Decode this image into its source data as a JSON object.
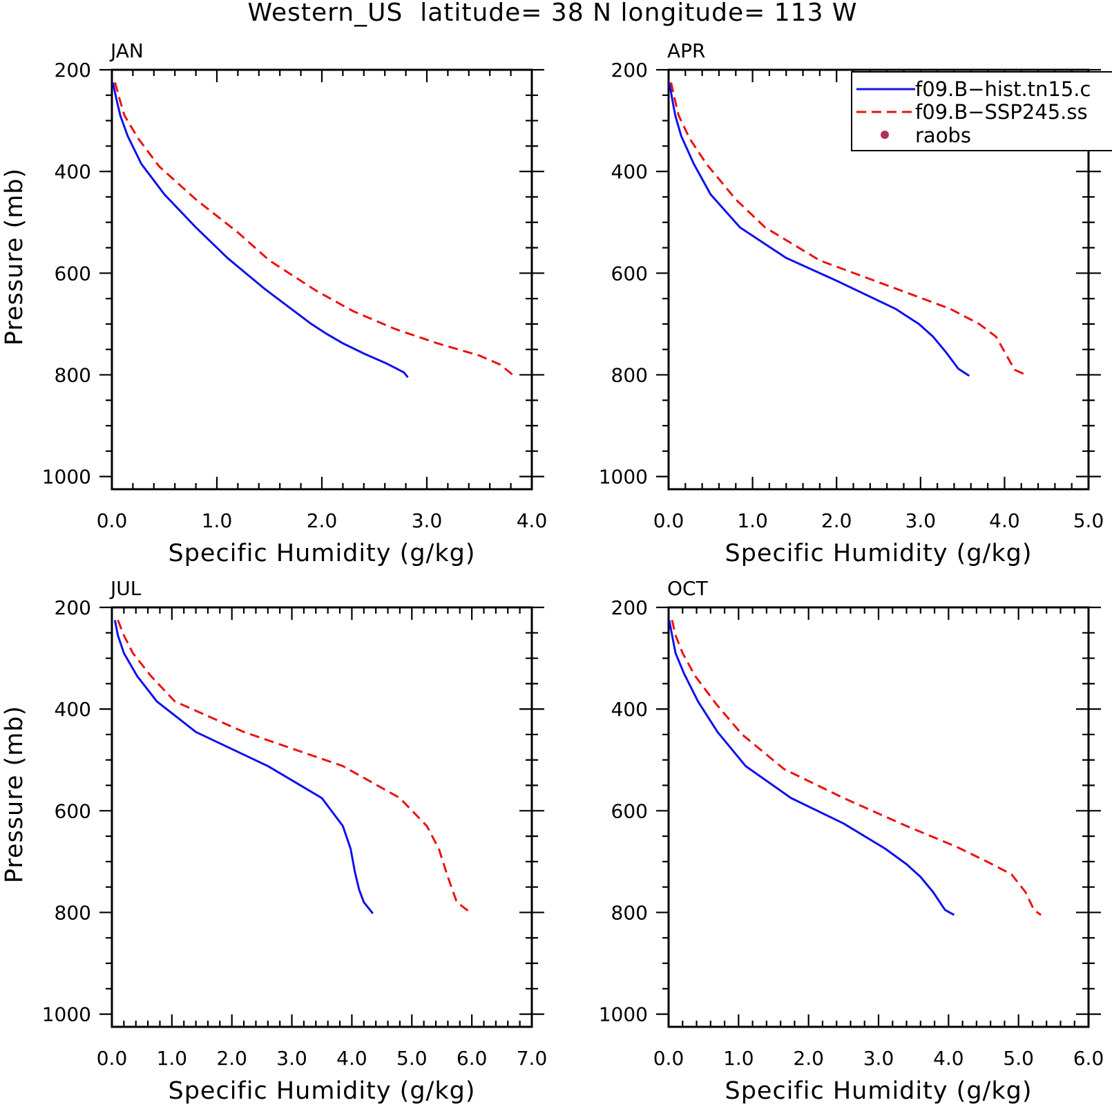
{
  "figure": {
    "title": "Western_US  latitude= 38 N longitude= 113 W",
    "colors": {
      "hist": "#1010ee",
      "ssp": "#ee1010",
      "raobs": "#b0305a"
    }
  },
  "legend": {
    "entries": [
      {
        "label": "f09.B−hist.tn15.c",
        "style": "solid",
        "color": "#1010ee"
      },
      {
        "label": "f09.B−SSP245.ss",
        "style": "dashed",
        "color": "#ee1010"
      },
      {
        "label": "raobs",
        "style": "marker",
        "color": "#b0305a"
      }
    ]
  },
  "chart_data": [
    {
      "type": "line",
      "panel": "JAN",
      "title": "JAN",
      "xlabel": "Specific Humidity (g/kg)",
      "ylabel": "Pressure (mb)",
      "xlim": [
        0,
        4
      ],
      "ylim": [
        200,
        1025
      ],
      "y_inverted": true,
      "xticks": [
        "0.0",
        "1.0",
        "2.0",
        "3.0",
        "4.0"
      ],
      "yticks": [
        "200",
        "400",
        "600",
        "800",
        "1000"
      ],
      "series": [
        {
          "name": "f09.B−hist.tn15.c",
          "x": [
            0.01,
            0.04,
            0.08,
            0.15,
            0.28,
            0.5,
            0.8,
            1.1,
            1.45,
            1.9,
            2.05,
            2.2,
            2.4,
            2.62,
            2.78,
            2.82
          ],
          "y": [
            225,
            255,
            290,
            330,
            385,
            445,
            510,
            570,
            630,
            700,
            720,
            738,
            758,
            778,
            795,
            805
          ]
        },
        {
          "name": "f09.B−SSP245.ss",
          "x": [
            0.03,
            0.07,
            0.12,
            0.25,
            0.45,
            0.8,
            1.2,
            1.5,
            1.95,
            2.3,
            2.7,
            3.1,
            3.5,
            3.7,
            3.83
          ],
          "y": [
            225,
            255,
            290,
            335,
            390,
            455,
            520,
            575,
            635,
            675,
            710,
            738,
            762,
            780,
            802
          ]
        }
      ]
    },
    {
      "type": "line",
      "panel": "APR",
      "title": "APR",
      "xlabel": "Specific Humidity (g/kg)",
      "ylabel": "",
      "xlim": [
        0,
        5
      ],
      "ylim": [
        200,
        1025
      ],
      "y_inverted": true,
      "xticks": [
        "0.0",
        "1.0",
        "2.0",
        "3.0",
        "4.0",
        "5.0"
      ],
      "yticks": [
        "200",
        "400",
        "600",
        "800",
        "1000"
      ],
      "series": [
        {
          "name": "f09.B−hist.tn15.c",
          "x": [
            0.01,
            0.04,
            0.08,
            0.15,
            0.3,
            0.5,
            0.85,
            1.4,
            2.0,
            2.7,
            2.98,
            3.15,
            3.3,
            3.45,
            3.58
          ],
          "y": [
            225,
            255,
            290,
            330,
            385,
            445,
            510,
            570,
            615,
            670,
            700,
            725,
            755,
            788,
            802
          ]
        },
        {
          "name": "f09.B−SSP245.ss",
          "x": [
            0.03,
            0.07,
            0.12,
            0.25,
            0.45,
            0.8,
            1.15,
            1.8,
            2.7,
            3.35,
            3.7,
            3.9,
            4.12,
            4.28
          ],
          "y": [
            225,
            255,
            290,
            335,
            385,
            455,
            510,
            575,
            630,
            670,
            700,
            725,
            790,
            802
          ]
        }
      ]
    },
    {
      "type": "line",
      "panel": "JUL",
      "title": "JUL",
      "xlabel": "Specific Humidity (g/kg)",
      "ylabel": "Pressure (mb)",
      "xlim": [
        0,
        7
      ],
      "ylim": [
        200,
        1025
      ],
      "y_inverted": true,
      "xticks": [
        "0.0",
        "1.0",
        "2.0",
        "3.0",
        "4.0",
        "5.0",
        "6.0",
        "7.0"
      ],
      "yticks": [
        "200",
        "400",
        "600",
        "800",
        "1000"
      ],
      "series": [
        {
          "name": "f09.B−hist.tn15.c",
          "x": [
            0.05,
            0.1,
            0.2,
            0.42,
            0.75,
            1.4,
            2.6,
            3.5,
            3.85,
            3.98,
            4.05,
            4.12,
            4.2,
            4.35
          ],
          "y": [
            225,
            255,
            290,
            335,
            385,
            445,
            512,
            575,
            630,
            675,
            720,
            755,
            780,
            802
          ]
        },
        {
          "name": "f09.B−SSP245.ss",
          "x": [
            0.1,
            0.2,
            0.35,
            0.65,
            1.05,
            2.2,
            3.85,
            4.8,
            5.25,
            5.45,
            5.6,
            5.75,
            6.0
          ],
          "y": [
            225,
            255,
            290,
            335,
            385,
            445,
            512,
            575,
            630,
            675,
            730,
            780,
            802
          ]
        }
      ]
    },
    {
      "type": "line",
      "panel": "OCT",
      "title": "OCT",
      "xlabel": "Specific Humidity (g/kg)",
      "ylabel": "",
      "xlim": [
        0,
        6
      ],
      "ylim": [
        200,
        1025
      ],
      "y_inverted": true,
      "xticks": [
        "0.0",
        "1.0",
        "2.0",
        "3.0",
        "4.0",
        "5.0",
        "6.0"
      ],
      "yticks": [
        "200",
        "400",
        "600",
        "800",
        "1000"
      ],
      "series": [
        {
          "name": "f09.B−hist.tn15.c",
          "x": [
            0.01,
            0.05,
            0.1,
            0.22,
            0.42,
            0.7,
            1.1,
            1.75,
            2.5,
            3.1,
            3.4,
            3.6,
            3.78,
            3.95,
            4.08
          ],
          "y": [
            225,
            255,
            290,
            330,
            385,
            445,
            512,
            575,
            625,
            675,
            705,
            730,
            760,
            795,
            805
          ]
        },
        {
          "name": "f09.B−SSP245.ss",
          "x": [
            0.05,
            0.1,
            0.2,
            0.38,
            0.68,
            1.05,
            1.65,
            2.5,
            3.4,
            4.1,
            4.55,
            4.9,
            5.1,
            5.22,
            5.32
          ],
          "y": [
            225,
            255,
            290,
            335,
            390,
            450,
            518,
            575,
            630,
            670,
            700,
            725,
            760,
            795,
            805
          ]
        }
      ]
    }
  ]
}
